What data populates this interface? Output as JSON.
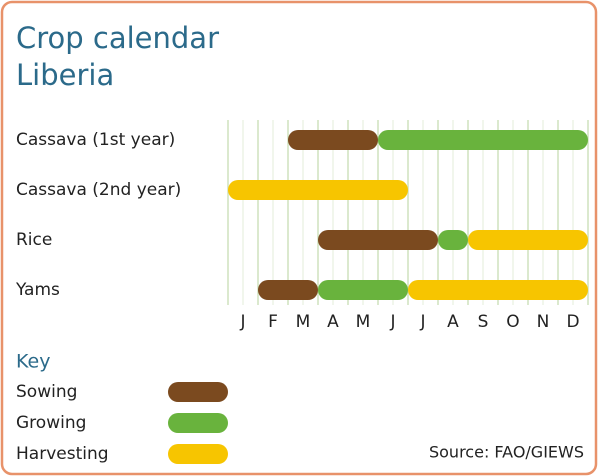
{
  "chart_data": {
    "type": "gantt",
    "title": "Crop calendar",
    "subtitle": "Liberia",
    "categories": [
      "Cassava (1st year)",
      "Cassava (2nd year)",
      "Rice",
      "Yams"
    ],
    "months": [
      "J",
      "F",
      "M",
      "A",
      "M",
      "J",
      "J",
      "A",
      "S",
      "O",
      "N",
      "D"
    ],
    "xlim": [
      0,
      12
    ],
    "grid": true,
    "legend_title": "Key",
    "series": [
      {
        "name": "Sowing",
        "color": "#7b4a1f",
        "values": [
          [
            2,
            5
          ],
          null,
          [
            3,
            7
          ],
          [
            1,
            3
          ]
        ]
      },
      {
        "name": "Growing",
        "color": "#69b33d",
        "values": [
          [
            5,
            12
          ],
          null,
          [
            7,
            8
          ],
          [
            3,
            6
          ]
        ]
      },
      {
        "name": "Harvesting",
        "color": "#f7c500",
        "values": [
          null,
          [
            0,
            6
          ],
          [
            8,
            12
          ],
          [
            6,
            12
          ]
        ]
      }
    ],
    "source": "Source: FAO/GIEWS"
  }
}
